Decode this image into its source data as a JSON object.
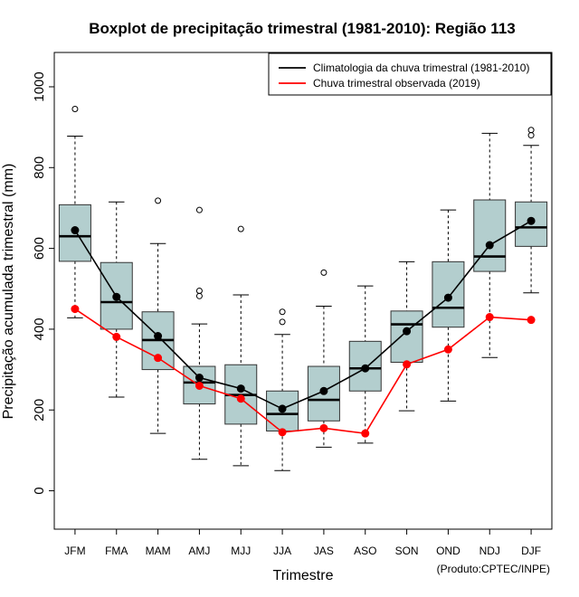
{
  "chart_data": {
    "type": "boxplot",
    "title": "Boxplot de precipitação trimestral (1981-2010): Região 113",
    "xlabel": "Trimestre",
    "ylabel": "Precipitação acumulada trimestral (mm)",
    "ylim": [
      -95,
      1085
    ],
    "yticks": [
      0,
      200,
      400,
      600,
      800,
      1000
    ],
    "categories": [
      "JFM",
      "FMA",
      "MAM",
      "AMJ",
      "MJJ",
      "JJA",
      "JAS",
      "ASO",
      "SON",
      "OND",
      "NDJ",
      "DJF"
    ],
    "boxes": [
      {
        "min": 428,
        "q1": 568,
        "median": 630,
        "q3": 708,
        "max": 878,
        "outliers": [
          945
        ]
      },
      {
        "min": 232,
        "q1": 400,
        "median": 467,
        "q3": 565,
        "max": 715,
        "outliers": []
      },
      {
        "min": 142,
        "q1": 300,
        "median": 373,
        "q3": 443,
        "max": 612,
        "outliers": [
          718
        ]
      },
      {
        "min": 78,
        "q1": 215,
        "median": 268,
        "q3": 308,
        "max": 413,
        "outliers": [
          482,
          495,
          695
        ]
      },
      {
        "min": 62,
        "q1": 165,
        "median": 237,
        "q3": 312,
        "max": 485,
        "outliers": [
          648
        ]
      },
      {
        "min": 50,
        "q1": 148,
        "median": 190,
        "q3": 247,
        "max": 387,
        "outliers": [
          418,
          443
        ]
      },
      {
        "min": 108,
        "q1": 173,
        "median": 225,
        "q3": 308,
        "max": 457,
        "outliers": [
          540
        ]
      },
      {
        "min": 118,
        "q1": 247,
        "median": 303,
        "q3": 370,
        "max": 507,
        "outliers": []
      },
      {
        "min": 198,
        "q1": 318,
        "median": 412,
        "q3": 445,
        "max": 567,
        "outliers": []
      },
      {
        "min": 222,
        "q1": 405,
        "median": 453,
        "q3": 567,
        "max": 695,
        "outliers": []
      },
      {
        "min": 330,
        "q1": 543,
        "median": 580,
        "q3": 720,
        "max": 885,
        "outliers": []
      },
      {
        "min": 490,
        "q1": 605,
        "median": 652,
        "q3": 715,
        "max": 855,
        "outliers": [
          880,
          893
        ]
      }
    ],
    "series": [
      {
        "name": "Climatologia da chuva trimestral (1981-2010)",
        "color": "#000000",
        "values": [
          645,
          480,
          383,
          280,
          253,
          203,
          247,
          303,
          395,
          478,
          608,
          668
        ]
      },
      {
        "name": "Chuva trimestral observada (2019)",
        "color": "#ff0000",
        "values": [
          450,
          381,
          329,
          260,
          228,
          145,
          155,
          142,
          313,
          350,
          430,
          423
        ]
      }
    ],
    "box_fill": "#b3cece",
    "legend_position": "top-right",
    "credit": "(Produto:CPTEC/INPE)"
  }
}
